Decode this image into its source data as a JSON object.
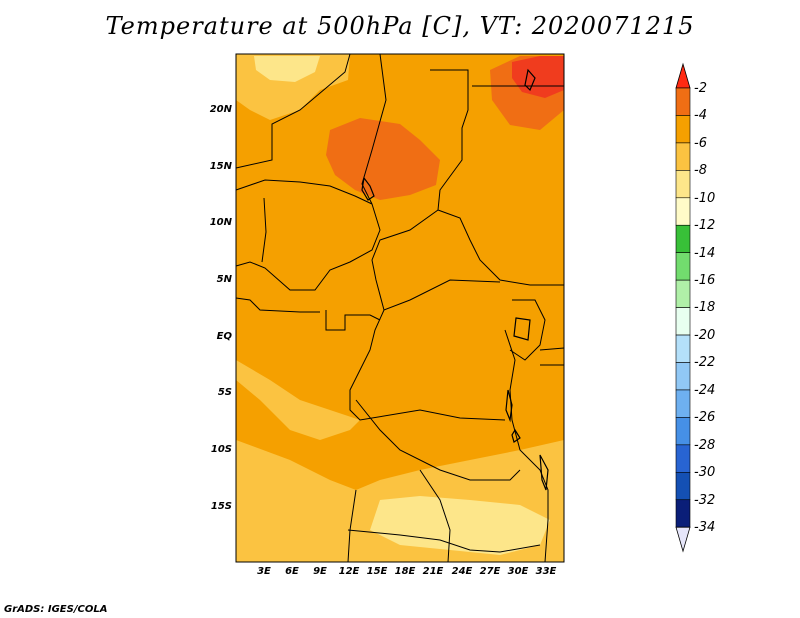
{
  "title": "Temperature at 500hPa [C], VT: 2020071215",
  "credit": "GrADS: IGES/COLA",
  "lat_labels": [
    "20N",
    "15N",
    "10N",
    "5N",
    "EQ",
    "5S",
    "10S",
    "15S"
  ],
  "lon_labels": [
    "3E",
    "6E",
    "9E",
    "12E",
    "15E",
    "18E",
    "21E",
    "24E",
    "27E",
    "30E",
    "33E"
  ],
  "colorbar": {
    "labels": [
      "-2",
      "-4",
      "-6",
      "-8",
      "-10",
      "-12",
      "-14",
      "-16",
      "-18",
      "-20",
      "-22",
      "-24",
      "-26",
      "-28",
      "-30",
      "-32",
      "-34"
    ],
    "colors": [
      "#f03c1e",
      "#f06e14",
      "#f5a000",
      "#fbc341",
      "#fde68a",
      "#fffbc8",
      "#38c038",
      "#72dc6e",
      "#b0f0a8",
      "#e8fff0",
      "#b4e0fa",
      "#91c8f5",
      "#6eb0f0",
      "#4690e6",
      "#2864d2",
      "#1450b4",
      "#0a1e78"
    ],
    "cap_top_color": "#ff2a12",
    "cap_bottom_color": "#e6e6fa"
  },
  "map": {
    "background_color": "#f5a000",
    "region_colors": {
      "warm_core": "#f06e14",
      "hottest": "#f03c1e",
      "cool": "#fbc341",
      "coolest": "#fde68a"
    }
  }
}
